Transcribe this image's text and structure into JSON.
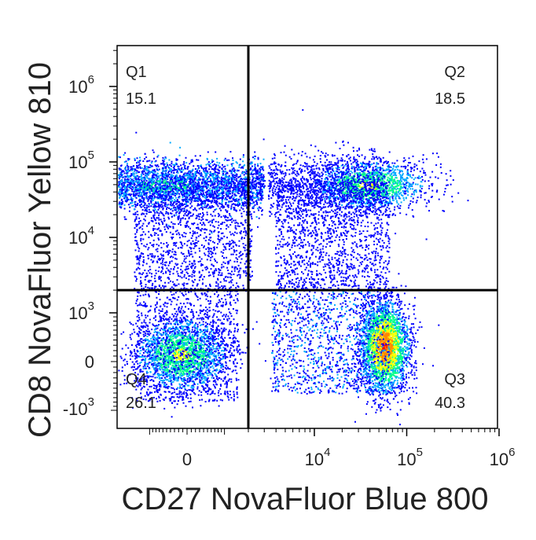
{
  "chart_data": {
    "type": "scatter",
    "style": "flow-cytometry-density-plot",
    "xlabel": "CD27 NovaFluor Blue 800",
    "ylabel": "CD8 NovaFluor Yellow 810",
    "x_scale": "biexponential",
    "y_scale": "biexponential",
    "x_ticks": [
      {
        "base": "0",
        "exp": ""
      },
      {
        "base": "10",
        "exp": "4"
      },
      {
        "base": "10",
        "exp": "5"
      },
      {
        "base": "10",
        "exp": "6"
      }
    ],
    "y_ticks": [
      {
        "base": "10",
        "exp": "6"
      },
      {
        "base": "10",
        "exp": "5"
      },
      {
        "base": "10",
        "exp": "4"
      },
      {
        "base": "10",
        "exp": "3"
      },
      {
        "base": "0",
        "exp": ""
      },
      {
        "base": "-10",
        "exp": "3"
      }
    ],
    "quadrants": [
      {
        "name": "Q1",
        "value": "15.1",
        "position": "top-left"
      },
      {
        "name": "Q2",
        "value": "18.5",
        "position": "top-right"
      },
      {
        "name": "Q3",
        "value": "40.3",
        "position": "bottom-right"
      },
      {
        "name": "Q4",
        "value": "26.1",
        "position": "bottom-left"
      }
    ],
    "gates": {
      "x": 2000,
      "y": 2000
    },
    "populations": [
      {
        "quadrant": "Q1",
        "x_center": -400,
        "y_center": 50000
      },
      {
        "quadrant": "Q2",
        "x_center": 35000,
        "y_center": 50000
      },
      {
        "quadrant": "Q3",
        "x_center": 45000,
        "y_center": 0
      },
      {
        "quadrant": "Q4",
        "x_center": 0,
        "y_center": 0
      }
    ],
    "colormap": [
      "#0000ff",
      "#00aaff",
      "#00ff88",
      "#ffff00",
      "#ff8800",
      "#ff0000"
    ],
    "grid": false
  }
}
